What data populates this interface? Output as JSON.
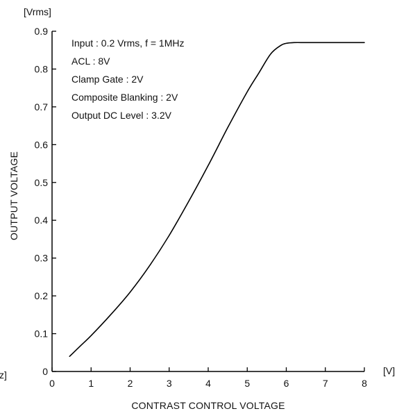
{
  "chart_data": {
    "type": "line",
    "title": "",
    "xlabel": "CONTRAST CONTROL VOLTAGE",
    "ylabel": "OUTPUT VOLTAGE",
    "x_unit": "[V]",
    "y_unit": "[Vrms]",
    "left_edge_fragment": "z]",
    "xlim": [
      0,
      8
    ],
    "ylim": [
      0,
      0.9
    ],
    "x_ticks": [
      "0",
      "1",
      "2",
      "3",
      "4",
      "5",
      "6",
      "7",
      "8"
    ],
    "y_ticks": [
      "0",
      "0.1",
      "0.2",
      "0.3",
      "0.4",
      "0.5",
      "0.6",
      "0.7",
      "0.8",
      "0.9"
    ],
    "grid": false,
    "annotations": [
      "Input : 0.2 Vrms, f = 1MHz",
      "ACL : 8V",
      "Clamp Gate : 2V",
      "Composite Blanking : 2V",
      "Output DC Level : 3.2V"
    ],
    "series": [
      {
        "x": [
          0.45,
          0.7,
          1.0,
          1.5,
          2.0,
          2.5,
          3.0,
          3.5,
          4.0,
          4.5,
          5.0,
          5.3,
          5.6,
          5.85,
          6.0,
          6.2,
          6.5,
          7.0,
          7.5,
          8.0
        ],
        "y": [
          0.04,
          0.065,
          0.095,
          0.15,
          0.21,
          0.28,
          0.36,
          0.45,
          0.545,
          0.645,
          0.74,
          0.79,
          0.84,
          0.862,
          0.868,
          0.87,
          0.87,
          0.87,
          0.87,
          0.87
        ]
      }
    ],
    "line_color": "#000000"
  }
}
